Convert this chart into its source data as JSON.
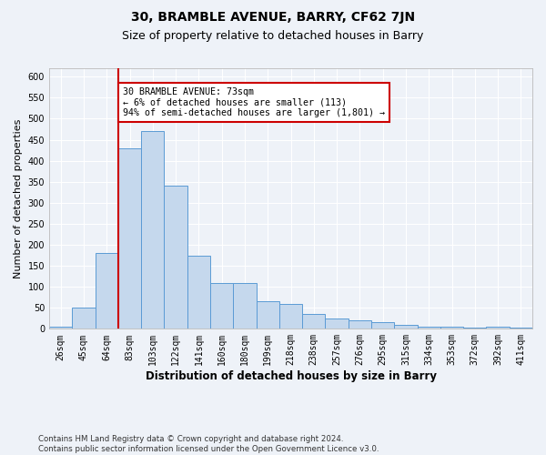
{
  "title": "30, BRAMBLE AVENUE, BARRY, CF62 7JN",
  "subtitle": "Size of property relative to detached houses in Barry",
  "xlabel": "Distribution of detached houses by size in Barry",
  "ylabel": "Number of detached properties",
  "categories": [
    "26sqm",
    "45sqm",
    "64sqm",
    "83sqm",
    "103sqm",
    "122sqm",
    "141sqm",
    "160sqm",
    "180sqm",
    "199sqm",
    "218sqm",
    "238sqm",
    "257sqm",
    "276sqm",
    "295sqm",
    "315sqm",
    "334sqm",
    "353sqm",
    "372sqm",
    "392sqm",
    "411sqm"
  ],
  "values": [
    5,
    50,
    180,
    430,
    470,
    340,
    175,
    110,
    110,
    65,
    60,
    35,
    25,
    20,
    15,
    10,
    5,
    5,
    2,
    5,
    2
  ],
  "bar_color": "#c5d8ed",
  "bar_edge_color": "#5b9bd5",
  "vline_pos": 2.5,
  "vline_color": "#cc0000",
  "annotation_text": "30 BRAMBLE AVENUE: 73sqm\n← 6% of detached houses are smaller (113)\n94% of semi-detached houses are larger (1,801) →",
  "annotation_box_color": "#ffffff",
  "annotation_box_edge_color": "#cc0000",
  "ylim": [
    0,
    620
  ],
  "yticks": [
    0,
    50,
    100,
    150,
    200,
    250,
    300,
    350,
    400,
    450,
    500,
    550,
    600
  ],
  "footnote": "Contains HM Land Registry data © Crown copyright and database right 2024.\nContains public sector information licensed under the Open Government Licence v3.0.",
  "bg_color": "#eef2f8",
  "grid_color": "#ffffff",
  "title_fontsize": 10,
  "subtitle_fontsize": 9,
  "tick_fontsize": 7,
  "ylabel_fontsize": 8,
  "xlabel_fontsize": 8.5
}
